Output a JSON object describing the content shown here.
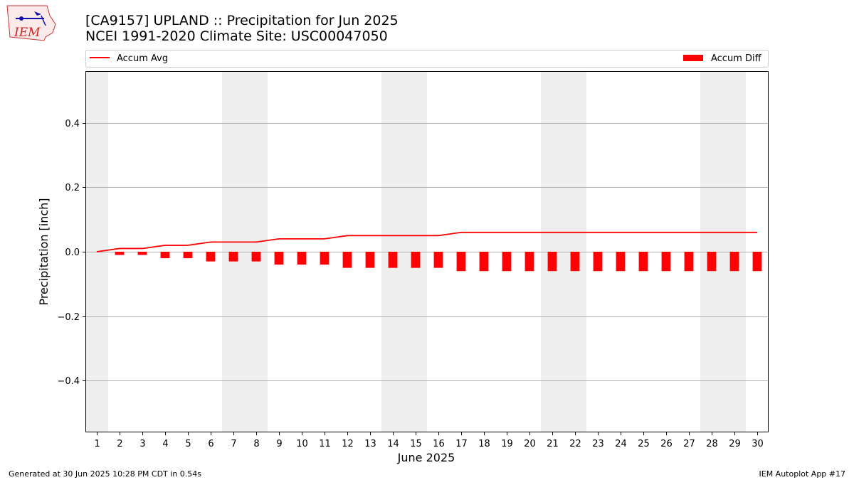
{
  "logo": {
    "text": "IEM"
  },
  "chart_data": {
    "type": "bar",
    "title": "[CA9157] UPLAND :: Precipitation for Jun 2025",
    "subtitle": "NCEI 1991-2020 Climate Site: USC00047050",
    "xlabel": "June 2025",
    "ylabel": "Precipitation [inch]",
    "ylim": [
      -0.56,
      0.56
    ],
    "yticks": [
      -0.4,
      -0.2,
      0.0,
      0.2,
      0.4
    ],
    "ytick_labels": [
      "−0.4",
      "−0.2",
      "0.0",
      "0.2",
      "0.4"
    ],
    "x": [
      1,
      2,
      3,
      4,
      5,
      6,
      7,
      8,
      9,
      10,
      11,
      12,
      13,
      14,
      15,
      16,
      17,
      18,
      19,
      20,
      21,
      22,
      23,
      24,
      25,
      26,
      27,
      28,
      29,
      30
    ],
    "xlim": [
      0.5,
      30.5
    ],
    "grid": "horizontal",
    "weekend_shading": [
      [
        0.5,
        1.5
      ],
      [
        6.5,
        8.5
      ],
      [
        13.5,
        15.5
      ],
      [
        20.5,
        22.5
      ],
      [
        27.5,
        29.5
      ]
    ],
    "series": [
      {
        "name": "Accum Avg",
        "kind": "line",
        "color": "#ff0000",
        "values": [
          0.0,
          0.01,
          0.01,
          0.02,
          0.02,
          0.03,
          0.03,
          0.03,
          0.04,
          0.04,
          0.04,
          0.05,
          0.05,
          0.05,
          0.05,
          0.05,
          0.06,
          0.06,
          0.06,
          0.06,
          0.06,
          0.06,
          0.06,
          0.06,
          0.06,
          0.06,
          0.06,
          0.06,
          0.06,
          0.06
        ]
      },
      {
        "name": "Accum Diff",
        "kind": "bar",
        "color": "#ff0000",
        "values": [
          0.0,
          -0.01,
          -0.01,
          -0.02,
          -0.02,
          -0.03,
          -0.03,
          -0.03,
          -0.04,
          -0.04,
          -0.04,
          -0.05,
          -0.05,
          -0.05,
          -0.05,
          -0.05,
          -0.06,
          -0.06,
          -0.06,
          -0.06,
          -0.06,
          -0.06,
          -0.06,
          -0.06,
          -0.06,
          -0.06,
          -0.06,
          -0.06,
          -0.06,
          -0.06
        ]
      }
    ],
    "legend": {
      "placement": "top"
    }
  },
  "footer": {
    "left": "Generated at 30 Jun 2025 10:28 PM CDT in 0.54s",
    "right": "IEM Autoplot App #17"
  }
}
